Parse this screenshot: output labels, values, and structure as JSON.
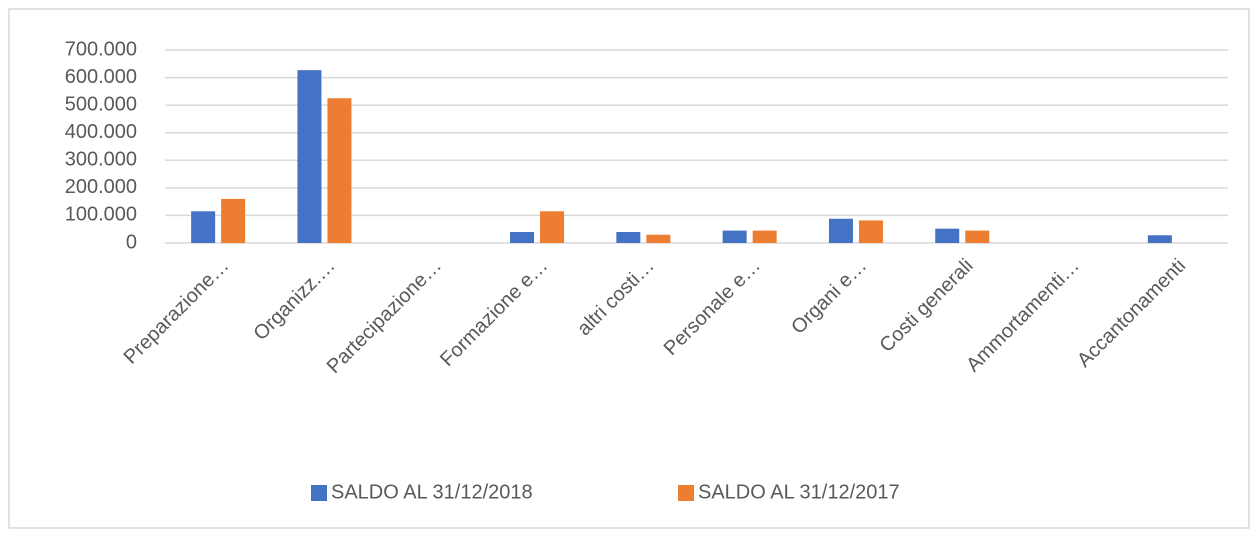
{
  "chart_data": {
    "type": "bar",
    "categories": [
      "Preparazione…",
      "Organizz.…",
      "Partecipazione…",
      "Formazione e…",
      "altri costi…",
      "Personale e…",
      "Organi e…",
      "Costi generali",
      "Ammortamenti…",
      "Accantonamenti"
    ],
    "series": [
      {
        "name": "SALDO AL 31/12/2018",
        "color": "#4472c4",
        "values": [
          115000,
          627000,
          0,
          40000,
          40000,
          45000,
          88000,
          52000,
          0,
          28000
        ]
      },
      {
        "name": "SALDO AL 31/12/2017",
        "color": "#ed7d31",
        "values": [
          160000,
          525000,
          0,
          115000,
          30000,
          45000,
          82000,
          45000,
          0,
          0
        ]
      }
    ],
    "ylim": [
      0,
      700000
    ],
    "yticks": [
      {
        "value": 0,
        "label": "0"
      },
      {
        "value": 100000,
        "label": "100.000"
      },
      {
        "value": 200000,
        "label": "200.000"
      },
      {
        "value": 300000,
        "label": "300.000"
      },
      {
        "value": 400000,
        "label": "400.000"
      },
      {
        "value": 500000,
        "label": "500.000"
      },
      {
        "value": 600000,
        "label": "600.000"
      },
      {
        "value": 700000,
        "label": "700.000"
      }
    ],
    "grid": true,
    "legend": "bottom"
  }
}
